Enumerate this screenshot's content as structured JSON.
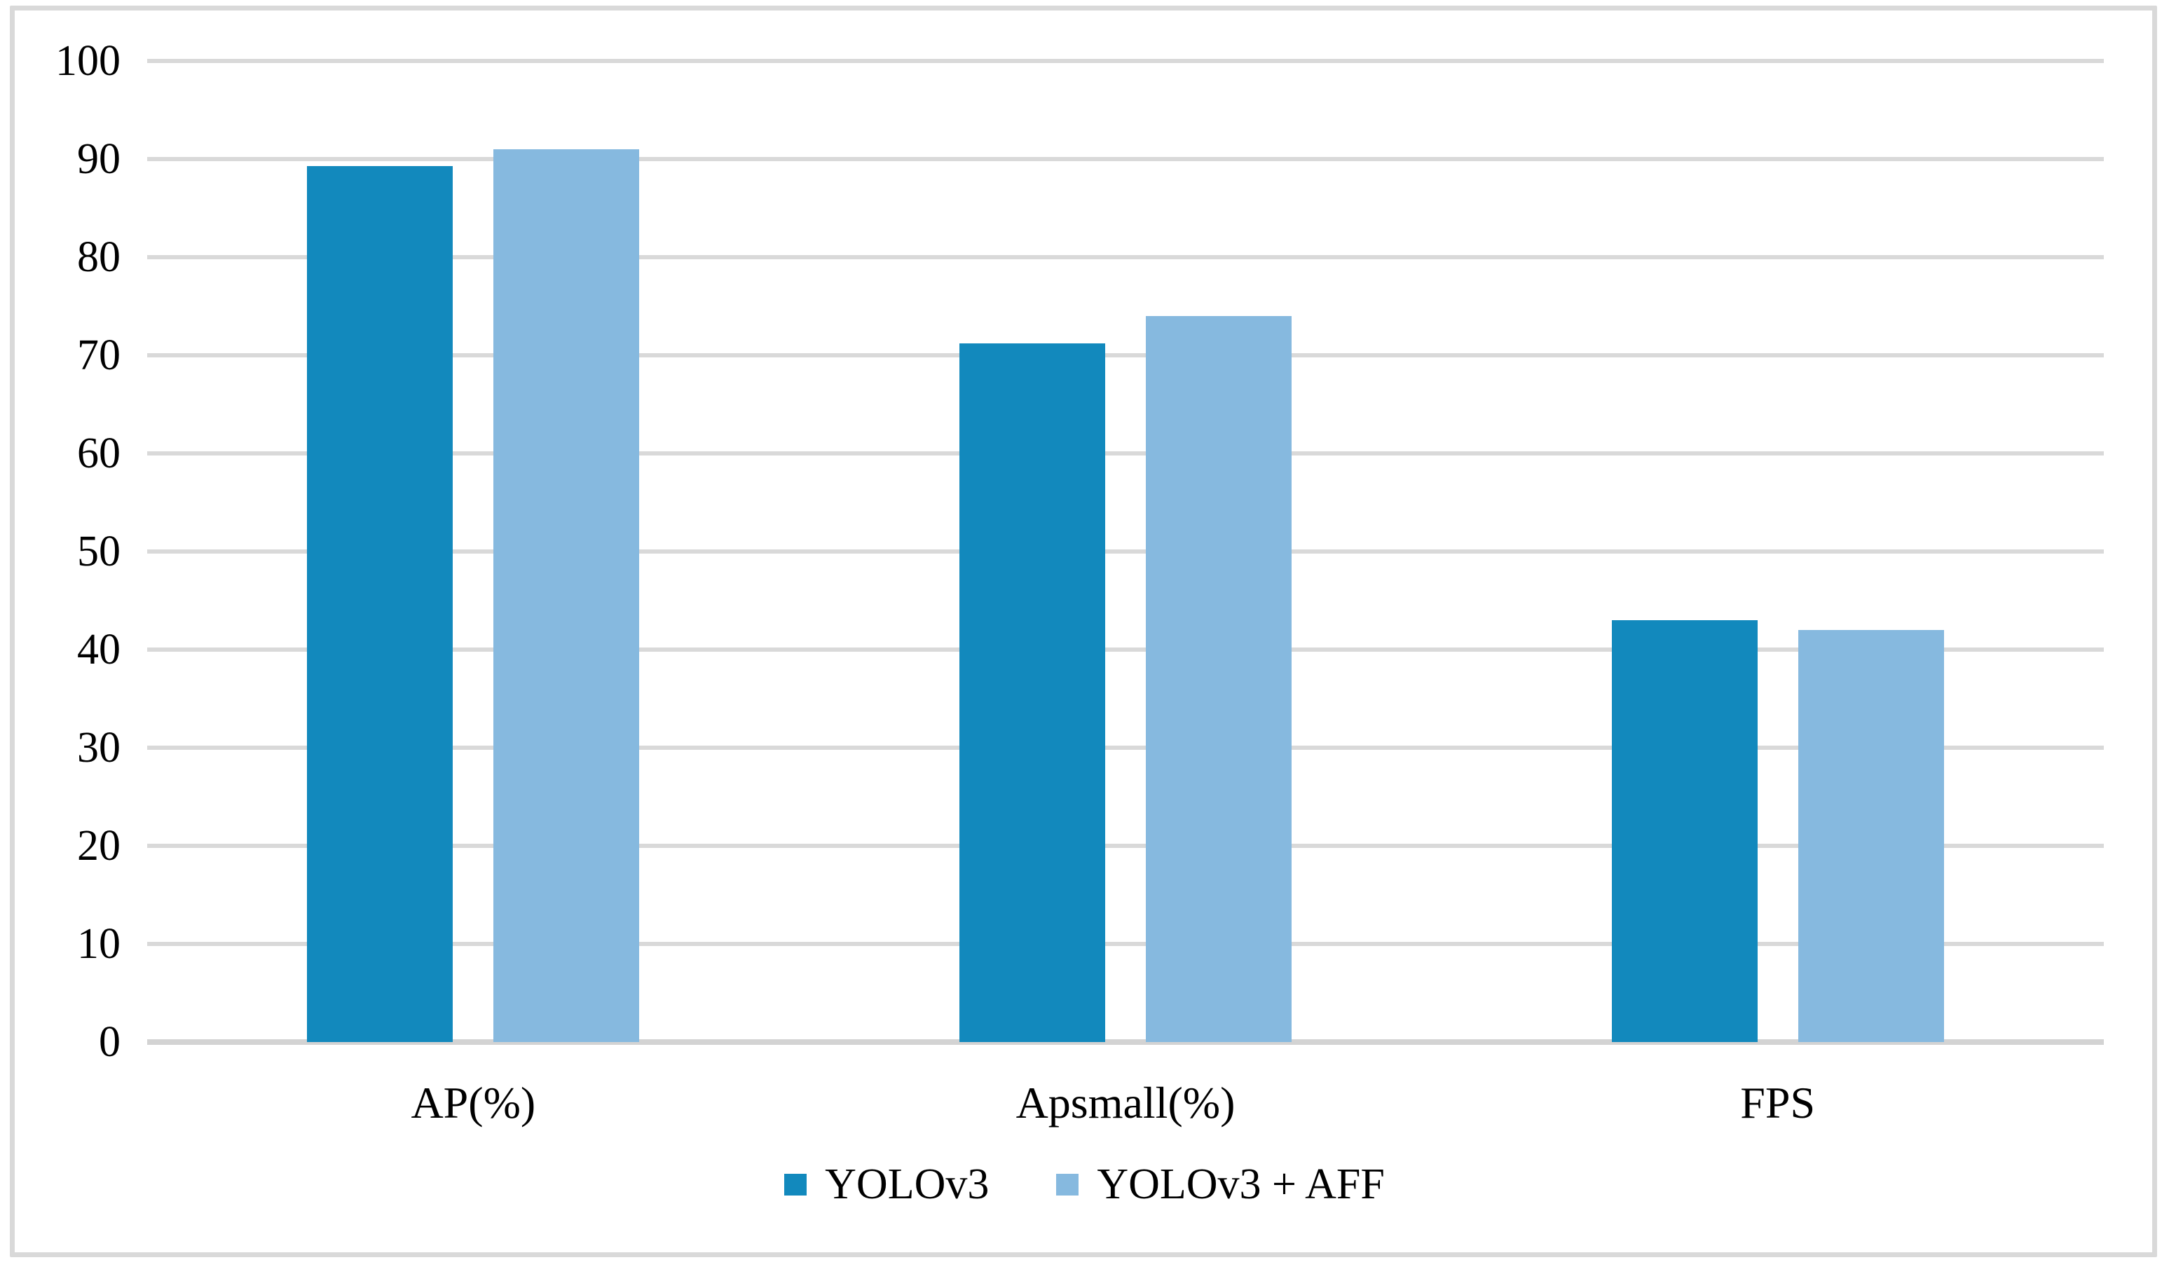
{
  "chart_data": {
    "type": "bar",
    "title": "",
    "subtitle": "",
    "categories": [
      "AP(%)",
      "Apsmall(%)",
      "FPS"
    ],
    "series": [
      {
        "name": "YOLOv3",
        "color": "#1289BD",
        "values": [
          89.3,
          71.2,
          43
        ]
      },
      {
        "name": "YOLOv3 + AFF",
        "color": "#86B9DF",
        "values": [
          91,
          74,
          42
        ]
      }
    ],
    "xlabel": "",
    "ylabel": "",
    "ylim": [
      0,
      100
    ],
    "yticks": [
      0,
      10,
      20,
      30,
      40,
      50,
      60,
      70,
      80,
      90,
      100
    ],
    "grid": "horizontal",
    "legend_position": "bottom-center"
  },
  "style": {
    "background": "#FFFFFF",
    "border_color": "#D9D9D9",
    "gridline_color": "#D9D9D9",
    "axis_line_color": "#D3D3D3",
    "text_color": "#000000"
  }
}
